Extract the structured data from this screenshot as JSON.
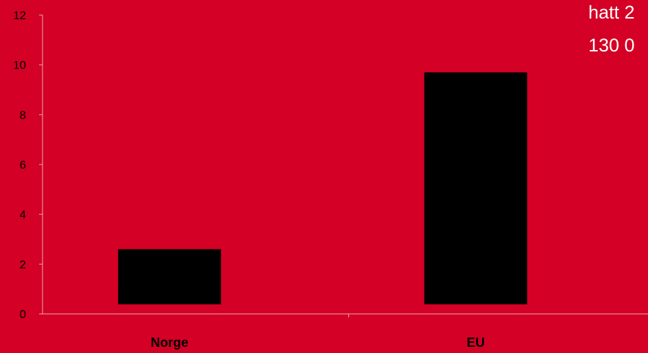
{
  "chart_data": {
    "type": "bar",
    "categories": [
      "Norge",
      "EU"
    ],
    "values": [
      2.6,
      9.7
    ],
    "ylim": [
      0,
      12
    ],
    "yticks": [
      0,
      2,
      4,
      6,
      8,
      10,
      12
    ],
    "grid": false,
    "bar_color": "#000000",
    "axis_color": "#E8B0B8"
  },
  "overlay_text": [
    "hatt 2",
    "130 0"
  ],
  "colors": {
    "background": "#D40025",
    "text_overlay": "#ffffff"
  }
}
